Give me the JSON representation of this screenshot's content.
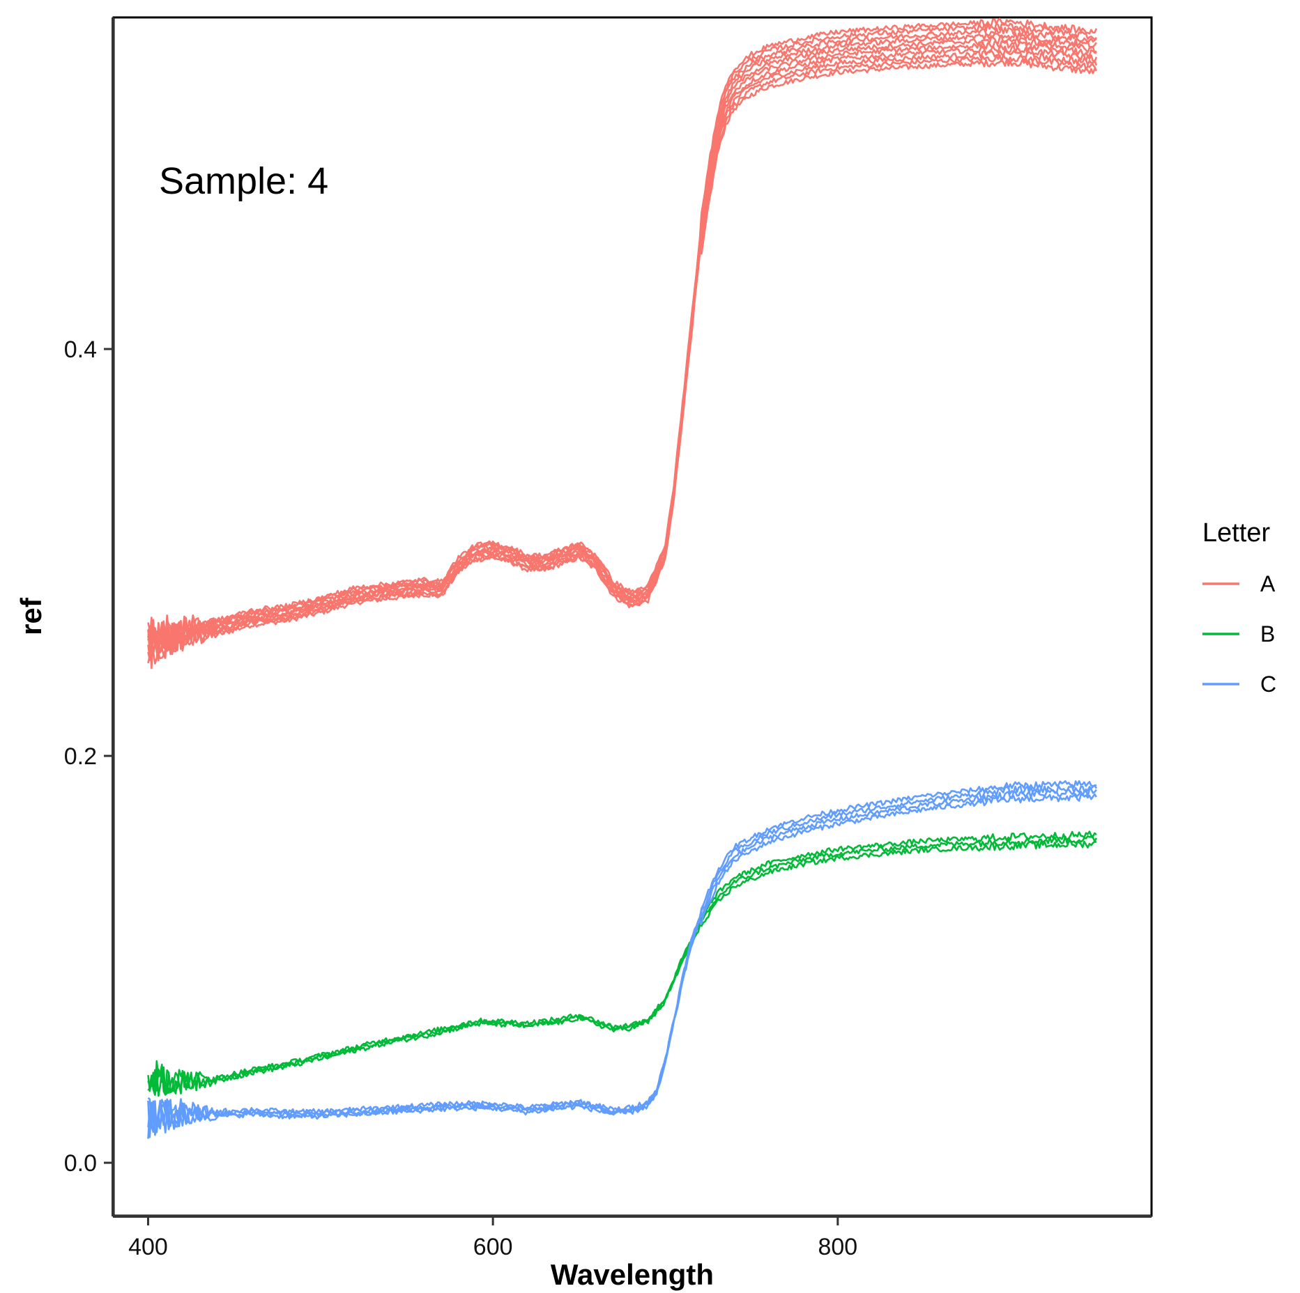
{
  "chart_data": {
    "type": "line",
    "title": "",
    "xlabel": "Wavelength",
    "ylabel": "ref",
    "xlim": [
      380,
      982
    ],
    "ylim": [
      -0.026,
      0.563
    ],
    "x_ticks": [
      {
        "value": 400,
        "label": "400"
      },
      {
        "value": 600,
        "label": "600"
      },
      {
        "value": 800,
        "label": "800"
      }
    ],
    "y_ticks": [
      {
        "value": 0.0,
        "label": "0.0"
      },
      {
        "value": 0.2,
        "label": "0.2"
      },
      {
        "value": 0.4,
        "label": "0.4"
      }
    ],
    "grid": false,
    "annotation": "Sample: 4",
    "legend": {
      "title": "Letter",
      "placement": "right",
      "entries": [
        {
          "label": "A",
          "color": "#F8766D"
        },
        {
          "label": "B",
          "color": "#00BA38"
        },
        {
          "label": "C",
          "color": "#619CFF"
        }
      ]
    },
    "series": [
      {
        "group": "A",
        "color": "#F8766D",
        "replicates": 10,
        "x": [
          400,
          420,
          440,
          460,
          480,
          500,
          520,
          540,
          560,
          570,
          580,
          590,
          600,
          610,
          620,
          630,
          640,
          650,
          660,
          670,
          680,
          690,
          700,
          705,
          710,
          715,
          720,
          725,
          730,
          735,
          740,
          750,
          760,
          780,
          800,
          850,
          900,
          950
        ],
        "y": [
          0.255,
          0.26,
          0.263,
          0.268,
          0.27,
          0.274,
          0.279,
          0.281,
          0.283,
          0.282,
          0.294,
          0.3,
          0.301,
          0.299,
          0.295,
          0.295,
          0.298,
          0.301,
          0.295,
          0.282,
          0.277,
          0.28,
          0.3,
          0.33,
          0.37,
          0.41,
          0.45,
          0.48,
          0.505,
          0.52,
          0.528,
          0.535,
          0.539,
          0.543,
          0.546,
          0.549,
          0.551,
          0.546
        ]
      },
      {
        "group": "B",
        "color": "#00BA38",
        "replicates": 3,
        "x": [
          400,
          420,
          440,
          460,
          480,
          500,
          520,
          540,
          560,
          580,
          590,
          600,
          620,
          640,
          650,
          660,
          670,
          680,
          690,
          700,
          710,
          720,
          730,
          740,
          760,
          780,
          800,
          850,
          900,
          950
        ],
        "y": [
          0.043,
          0.04,
          0.041,
          0.045,
          0.048,
          0.052,
          0.056,
          0.06,
          0.063,
          0.067,
          0.069,
          0.069,
          0.068,
          0.07,
          0.072,
          0.069,
          0.066,
          0.067,
          0.07,
          0.08,
          0.1,
          0.117,
          0.13,
          0.138,
          0.145,
          0.149,
          0.152,
          0.156,
          0.158,
          0.159
        ]
      },
      {
        "group": "C",
        "color": "#619CFF",
        "replicates": 4,
        "x": [
          400,
          420,
          440,
          460,
          480,
          500,
          540,
          560,
          580,
          600,
          620,
          640,
          650,
          660,
          670,
          680,
          690,
          695,
          700,
          705,
          710,
          715,
          720,
          725,
          730,
          740,
          760,
          780,
          800,
          850,
          900,
          950
        ],
        "y": [
          0.022,
          0.024,
          0.024,
          0.025,
          0.024,
          0.024,
          0.026,
          0.027,
          0.028,
          0.028,
          0.026,
          0.028,
          0.029,
          0.027,
          0.025,
          0.026,
          0.029,
          0.035,
          0.05,
          0.07,
          0.09,
          0.108,
          0.12,
          0.13,
          0.14,
          0.152,
          0.161,
          0.166,
          0.17,
          0.177,
          0.182,
          0.183
        ]
      }
    ]
  }
}
